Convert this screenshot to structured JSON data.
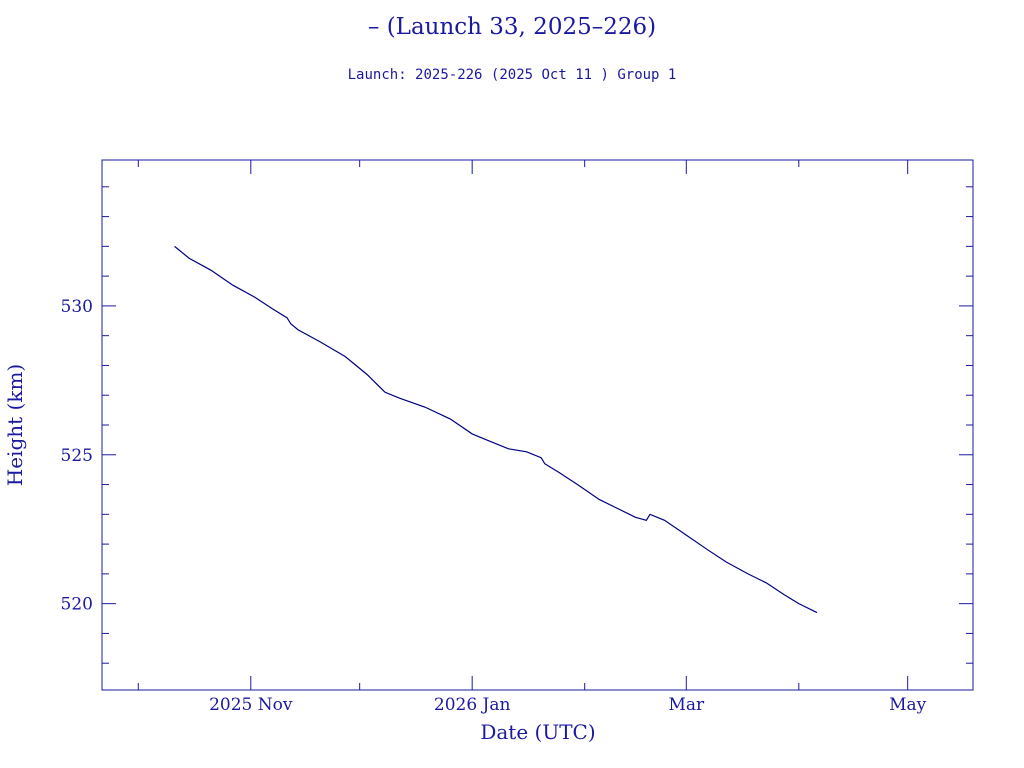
{
  "title": "– (Launch 33, 2025–226)",
  "subtitle": "Launch: 2025-226  (2025 Oct 11 )  Group 1",
  "colors": {
    "ink": "#1a1aa0",
    "series": "#000080",
    "background": "#ffffff"
  },
  "chart_data": {
    "type": "line",
    "xlabel": "Date (UTC)",
    "ylabel": "Height (km)",
    "xlim": [
      "2025-09-21",
      "2026-05-19"
    ],
    "ylim": [
      517.1,
      534.9
    ],
    "grid": false,
    "legend": "none",
    "x_ticks": [
      {
        "date": "2025-11-01",
        "label": "2025 Nov"
      },
      {
        "date": "2026-01-01",
        "label": "2026 Jan"
      },
      {
        "date": "2026-03-01",
        "label": "Mar"
      },
      {
        "date": "2026-05-01",
        "label": "May"
      }
    ],
    "y_ticks": [
      {
        "value": 520,
        "label": "520"
      },
      {
        "value": 525,
        "label": "525"
      },
      {
        "value": 530,
        "label": "530"
      }
    ],
    "series": [
      {
        "x": [
          "2025-10-11",
          "2025-10-15",
          "2025-10-21",
          "2025-10-27",
          "2025-11-02",
          "2025-11-07",
          "2025-11-11",
          "2025-11-12",
          "2025-11-14",
          "2025-11-20",
          "2025-11-27",
          "2025-12-03",
          "2025-12-08",
          "2025-12-12",
          "2025-12-19",
          "2025-12-26",
          "2026-01-01",
          "2026-01-05",
          "2026-01-11",
          "2026-01-16",
          "2026-01-20",
          "2026-01-21",
          "2026-01-25",
          "2026-01-30",
          "2026-02-05",
          "2026-02-10",
          "2026-02-15",
          "2026-02-18",
          "2026-02-19",
          "2026-02-23",
          "2026-03-01",
          "2026-03-07",
          "2026-03-12",
          "2026-03-18",
          "2026-03-23",
          "2026-03-28",
          "2026-04-01",
          "2026-04-06"
        ],
        "y": [
          532.0,
          531.6,
          531.2,
          530.7,
          530.3,
          529.9,
          529.6,
          529.4,
          529.2,
          528.8,
          528.3,
          527.7,
          527.1,
          526.9,
          526.6,
          526.2,
          525.7,
          525.5,
          525.2,
          525.1,
          524.9,
          524.7,
          524.4,
          524.0,
          523.5,
          523.2,
          522.9,
          522.8,
          523.0,
          522.8,
          522.3,
          521.8,
          521.4,
          521.0,
          520.7,
          520.3,
          520.0,
          519.7
        ]
      }
    ]
  }
}
